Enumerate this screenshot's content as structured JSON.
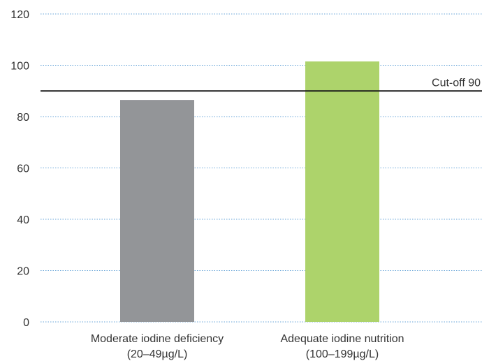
{
  "chart_data": {
    "type": "bar",
    "title": "",
    "xlabel": "",
    "ylabel": "",
    "ylim": [
      0,
      120
    ],
    "yticks": [
      0,
      20,
      40,
      60,
      80,
      100,
      120
    ],
    "grid": true,
    "categories": [
      {
        "line1": "Moderate iodine deficiency",
        "line2": "(20–49µg/L)"
      },
      {
        "line1": "Adequate iodine nutrition",
        "line2": "(100–199µg/L)"
      }
    ],
    "values": [
      86.5,
      101.5
    ],
    "colors": [
      "#939598",
      "#add36b"
    ],
    "reference_line": {
      "value": 90,
      "label": "Cut-off 90",
      "color": "#1a1a1a"
    }
  }
}
